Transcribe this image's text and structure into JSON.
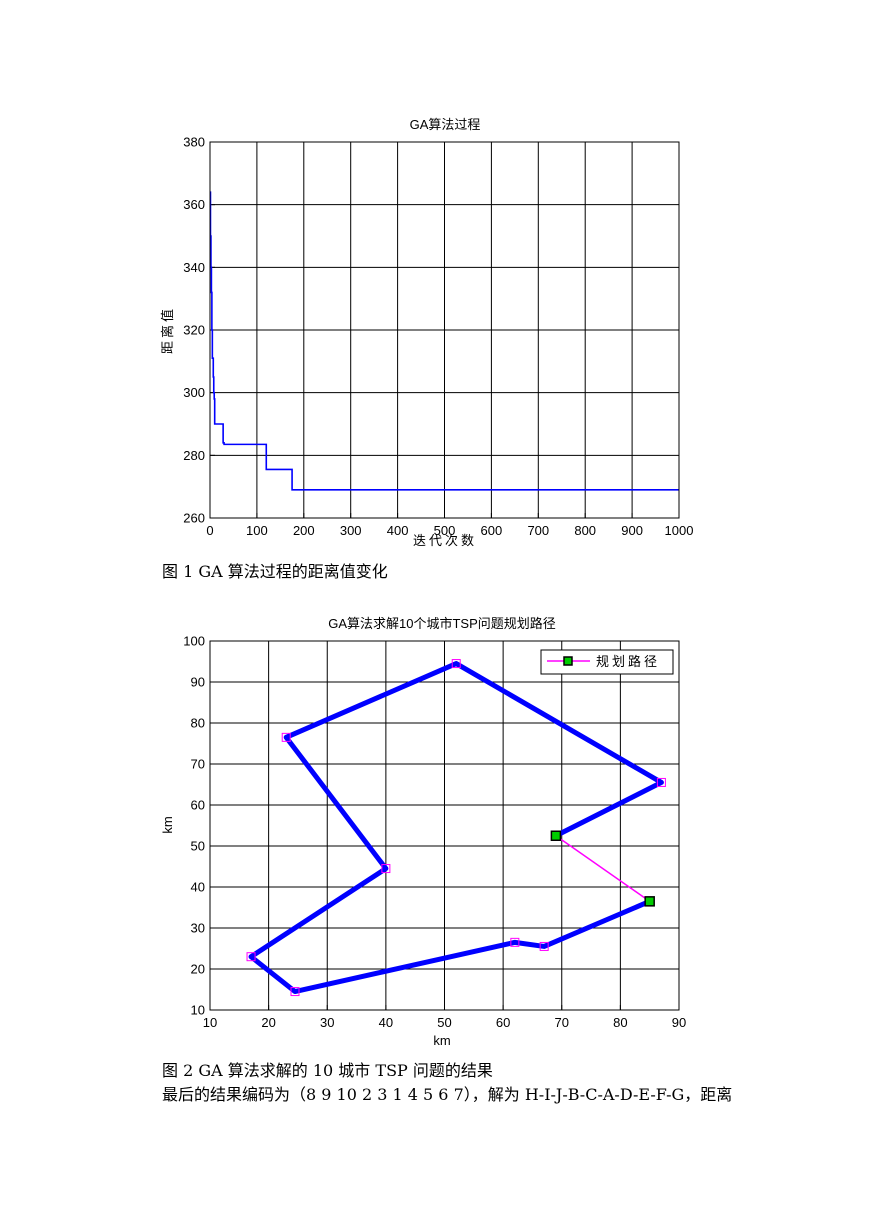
{
  "chart_data": [
    {
      "type": "line",
      "title": "GA算法过程",
      "xlabel": "迭代次数",
      "ylabel": "距离值",
      "xlim": [
        0,
        1000
      ],
      "ylim": [
        260,
        380
      ],
      "xticks": [
        0,
        100,
        200,
        300,
        400,
        500,
        600,
        700,
        800,
        900,
        1000
      ],
      "yticks": [
        260,
        280,
        300,
        320,
        340,
        360,
        380
      ],
      "grid": true,
      "series": [
        {
          "color": "#0000ff",
          "x": [
            0,
            1,
            2,
            3,
            4,
            5,
            6,
            7,
            8,
            9,
            10,
            12,
            25,
            28,
            30,
            35,
            60,
            90,
            118,
            120,
            150,
            173,
            175,
            200,
            280,
            400,
            600,
            800,
            1000
          ],
          "y": [
            364,
            350,
            340,
            332,
            320,
            311,
            311,
            305,
            300,
            298,
            290,
            290,
            290,
            284,
            283.5,
            283.5,
            283.5,
            283.5,
            283.5,
            275.5,
            275.5,
            275.5,
            269,
            269,
            269,
            269,
            269,
            269,
            269
          ]
        }
      ]
    },
    {
      "type": "line",
      "title": "GA算法求解10个城市TSP问题规划路径",
      "xlabel": "km",
      "ylabel": "km",
      "xlim": [
        10,
        90
      ],
      "ylim": [
        10,
        100
      ],
      "xticks": [
        10,
        20,
        30,
        40,
        50,
        60,
        70,
        80,
        90
      ],
      "yticks": [
        10,
        20,
        30,
        40,
        50,
        60,
        70,
        80,
        90,
        100
      ],
      "grid": true,
      "legend": {
        "position": "top-right",
        "entries": [
          "规划路径"
        ]
      },
      "route": {
        "color": "#0000ff",
        "x": [
          69,
          87,
          52,
          23,
          40,
          17,
          24.5,
          62,
          67,
          85
        ],
        "y": [
          52.5,
          65.5,
          94.5,
          76.5,
          44.5,
          23,
          14.5,
          26.5,
          25.5,
          36.5
        ]
      },
      "closing_link": {
        "color": "#ff00ff",
        "x": [
          85,
          69
        ],
        "y": [
          36.5,
          52.5
        ]
      },
      "cities": {
        "marker_color": "#ff00ff",
        "x": [
          52,
          23,
          87,
          69,
          40,
          85,
          62,
          67,
          17,
          24.5
        ],
        "y": [
          94.5,
          76.5,
          65.5,
          52.5,
          44.5,
          36.5,
          26.5,
          25.5,
          23,
          14.5
        ]
      },
      "endpoints": {
        "marker_color": "#00cc00",
        "x": [
          69,
          85
        ],
        "y": [
          52.5,
          36.5
        ]
      }
    }
  ],
  "captions": {
    "fig1": "图 1 GA 算法过程的距离值变化",
    "fig2": "图 2 GA 算法求解的 10 城市 TSP 问题的结果",
    "result": "最后的结果编码为（8 9 10 2 3 1 4 5 6 7），解为 H-I-J-B-C-A-D-E-F-G，距离"
  }
}
